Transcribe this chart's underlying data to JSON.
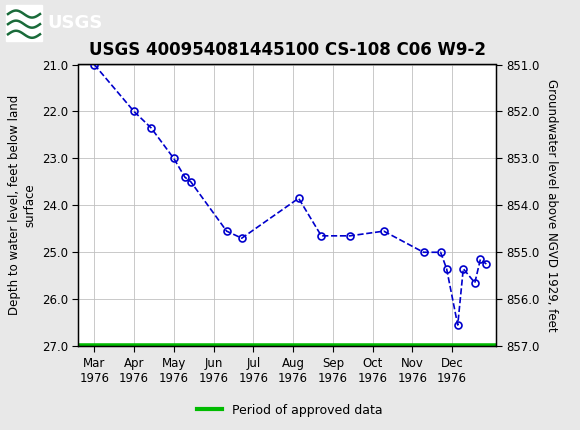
{
  "title": "USGS 400954081445100 CS-108 C06 W9-2",
  "xlabel_months": [
    "Mar\n1976",
    "Apr\n1976",
    "May\n1976",
    "Jun\n1976",
    "Jul\n1976",
    "Aug\n1976",
    "Sep\n1976",
    "Oct\n1976",
    "Nov\n1976",
    "Dec\n1976"
  ],
  "ylabel_left": "Depth to water level, feet below land\nsurface",
  "ylabel_right": "Groundwater level above NGVD 1929, feet",
  "ylim_left": [
    21.0,
    27.0
  ],
  "ylim_right": [
    851.0,
    857.0
  ],
  "yticks_left": [
    21.0,
    22.0,
    23.0,
    24.0,
    25.0,
    26.0,
    27.0
  ],
  "yticks_right": [
    851.0,
    852.0,
    853.0,
    854.0,
    855.0,
    856.0,
    857.0
  ],
  "data_x_months": [
    0.0,
    1.0,
    1.43,
    2.0,
    2.28,
    2.43,
    3.33,
    3.71,
    5.14,
    5.71,
    6.43,
    7.28,
    8.28,
    8.71,
    8.86,
    9.14,
    9.28,
    9.57,
    9.71,
    9.86
  ],
  "data_y": [
    21.0,
    22.0,
    22.35,
    23.0,
    23.4,
    23.5,
    24.55,
    24.7,
    23.85,
    24.65,
    24.65,
    24.55,
    25.0,
    25.0,
    25.35,
    26.55,
    25.35,
    25.65,
    25.15,
    25.25
  ],
  "line_color": "#0000cc",
  "marker_color": "#0000cc",
  "grid_color": "#c0c0c0",
  "bg_color": "#ffffff",
  "plot_bg": "#f5f5f0",
  "header_bg": "#1a6b3a",
  "header_text_color": "#ffffff",
  "legend_label": "Period of approved data",
  "legend_color": "#00bb00",
  "approved_y": 27.0,
  "title_fontsize": 12,
  "axis_label_fontsize": 8.5,
  "tick_fontsize": 8.5,
  "x_month_positions": [
    0,
    1,
    2,
    3,
    4,
    5,
    6,
    7,
    8,
    9
  ],
  "xlim": [
    -0.4,
    10.1
  ]
}
